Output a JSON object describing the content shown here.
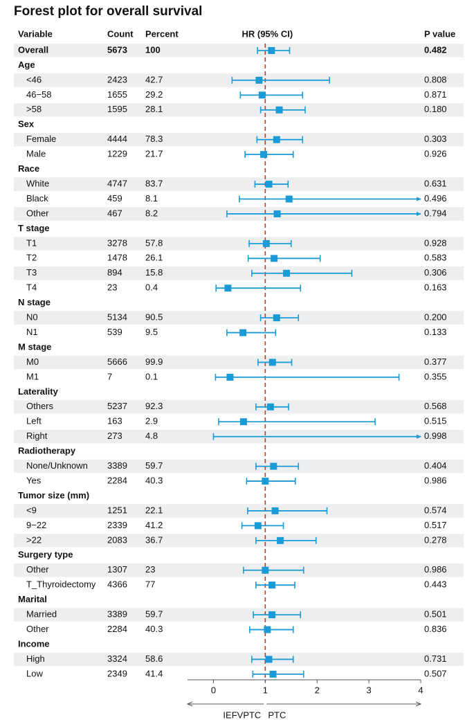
{
  "title": "Forest plot for overall survival",
  "colors": {
    "marker": "#1a9bd7",
    "ref_line": "#c0392b",
    "row_band": "#eceeef",
    "axis": "#555555"
  },
  "chart_data": {
    "type": "forest",
    "title": "Forest plot for overall survival",
    "columns": {
      "variable": "Variable",
      "count": "Count",
      "percent": "Percent",
      "hr": "HR (95% CI)",
      "p": "P value"
    },
    "xlim": [
      -0.5,
      4
    ],
    "xticks": [
      0,
      1,
      2,
      3,
      4
    ],
    "reference_line": 1,
    "arrow_labels": {
      "left": "IEFVPTC",
      "right": "PTC"
    },
    "rows": [
      {
        "label": "Overall",
        "bold": true,
        "count": "5673",
        "percent": "100",
        "hr": 1.12,
        "lo": 0.85,
        "hi": 1.47,
        "p": "0.482"
      },
      {
        "label": "Age",
        "header": true
      },
      {
        "label": "<46",
        "count": "2423",
        "percent": "42.7",
        "hr": 0.88,
        "lo": 0.36,
        "hi": 2.24,
        "p": "0.808"
      },
      {
        "label": "46−58",
        "count": "1655",
        "percent": "29.2",
        "hr": 0.94,
        "lo": 0.52,
        "hi": 1.72,
        "p": "0.871"
      },
      {
        "label": ">58",
        "count": "1595",
        "percent": "28.1",
        "hr": 1.27,
        "lo": 0.91,
        "hi": 1.77,
        "p": "0.180"
      },
      {
        "label": "Sex",
        "header": true
      },
      {
        "label": "Female",
        "count": "4444",
        "percent": "78.3",
        "hr": 1.22,
        "lo": 0.84,
        "hi": 1.72,
        "p": "0.303"
      },
      {
        "label": "Male",
        "count": "1229",
        "percent": "21.7",
        "hr": 0.97,
        "lo": 0.61,
        "hi": 1.54,
        "p": "0.926"
      },
      {
        "label": "Race",
        "header": true
      },
      {
        "label": "White",
        "count": "4747",
        "percent": "83.7",
        "hr": 1.07,
        "lo": 0.8,
        "hi": 1.44,
        "p": "0.631"
      },
      {
        "label": "Black",
        "count": "459",
        "percent": "8.1",
        "hr": 1.46,
        "lo": 0.5,
        "hi": 4.0,
        "arrow": true,
        "p": "0.496"
      },
      {
        "label": "Other",
        "count": "467",
        "percent": "8.2",
        "hr": 1.23,
        "lo": 0.26,
        "hi": 4.0,
        "arrow": true,
        "p": "0.794"
      },
      {
        "label": "T stage",
        "header": true
      },
      {
        "label": "T1",
        "count": "3278",
        "percent": "57.8",
        "hr": 1.02,
        "lo": 0.69,
        "hi": 1.5,
        "p": "0.928"
      },
      {
        "label": "T2",
        "count": "1478",
        "percent": "26.1",
        "hr": 1.17,
        "lo": 0.67,
        "hi": 2.06,
        "p": "0.583"
      },
      {
        "label": "T3",
        "count": "894",
        "percent": "15.8",
        "hr": 1.41,
        "lo": 0.74,
        "hi": 2.67,
        "p": "0.306"
      },
      {
        "label": "T4",
        "count": "23",
        "percent": "0.4",
        "hr": 0.28,
        "lo": 0.05,
        "hi": 1.68,
        "p": "0.163"
      },
      {
        "label": "N stage",
        "header": true
      },
      {
        "label": "N0",
        "count": "5134",
        "percent": "90.5",
        "hr": 1.22,
        "lo": 0.91,
        "hi": 1.64,
        "p": "0.200"
      },
      {
        "label": "N1",
        "count": "539",
        "percent": "9.5",
        "hr": 0.57,
        "lo": 0.26,
        "hi": 1.2,
        "p": "0.133"
      },
      {
        "label": "M stage",
        "header": true
      },
      {
        "label": "M0",
        "count": "5666",
        "percent": "99.9",
        "hr": 1.14,
        "lo": 0.86,
        "hi": 1.51,
        "p": "0.377"
      },
      {
        "label": "M1",
        "count": "7",
        "percent": "0.1",
        "hr": 0.32,
        "lo": 0.04,
        "hi": 3.58,
        "p": "0.355"
      },
      {
        "label": "Laterality",
        "header": true
      },
      {
        "label": "Others",
        "count": "5237",
        "percent": "92.3",
        "hr": 1.1,
        "lo": 0.82,
        "hi": 1.45,
        "p": "0.568"
      },
      {
        "label": "Left",
        "count": "163",
        "percent": "2.9",
        "hr": 0.58,
        "lo": 0.1,
        "hi": 3.12,
        "p": "0.515"
      },
      {
        "label": "Right",
        "count": "273",
        "percent": "4.8",
        "hr": 1.0,
        "lo": 0.0,
        "hi": 4.0,
        "arrow": true,
        "nomarker": true,
        "p": "0.998"
      },
      {
        "label": "Radiotherapy",
        "header": true
      },
      {
        "label": "None/Unknown",
        "count": "3389",
        "percent": "59.7",
        "hr": 1.16,
        "lo": 0.82,
        "hi": 1.64,
        "p": "0.404"
      },
      {
        "label": "Yes",
        "count": "2284",
        "percent": "40.3",
        "hr": 1.0,
        "lo": 0.64,
        "hi": 1.58,
        "p": "0.986"
      },
      {
        "label": "Tumor size (mm)",
        "header": true
      },
      {
        "label": "<9",
        "count": "1251",
        "percent": "22.1",
        "hr": 1.19,
        "lo": 0.66,
        "hi": 2.19,
        "p": "0.574"
      },
      {
        "label": "9−22",
        "count": "2339",
        "percent": "41.2",
        "hr": 0.86,
        "lo": 0.55,
        "hi": 1.35,
        "p": "0.517"
      },
      {
        "label": ">22",
        "count": "2083",
        "percent": "36.7",
        "hr": 1.29,
        "lo": 0.82,
        "hi": 1.98,
        "p": "0.278"
      },
      {
        "label": "Surgery type",
        "header": true
      },
      {
        "label": "Other",
        "count": "1307",
        "percent": "23",
        "hr": 1.0,
        "lo": 0.58,
        "hi": 1.74,
        "p": "0.986"
      },
      {
        "label": "T_Thyroidectomy",
        "count": "4366",
        "percent": "77",
        "hr": 1.13,
        "lo": 0.82,
        "hi": 1.57,
        "p": "0.443"
      },
      {
        "label": "Marital",
        "header": true
      },
      {
        "label": "Married",
        "count": "3389",
        "percent": "59.7",
        "hr": 1.13,
        "lo": 0.77,
        "hi": 1.68,
        "p": "0.501"
      },
      {
        "label": "Other",
        "count": "2284",
        "percent": "40.3",
        "hr": 1.04,
        "lo": 0.7,
        "hi": 1.54,
        "p": "0.836"
      },
      {
        "label": "Income",
        "header": true
      },
      {
        "label": "High",
        "count": "3324",
        "percent": "58.6",
        "hr": 1.07,
        "lo": 0.74,
        "hi": 1.54,
        "p": "0.731"
      },
      {
        "label": "Low",
        "count": "2349",
        "percent": "41.4",
        "hr": 1.15,
        "lo": 0.76,
        "hi": 1.74,
        "p": "0.507"
      }
    ]
  }
}
